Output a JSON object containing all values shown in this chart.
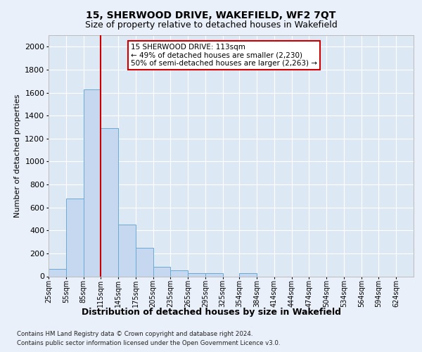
{
  "title1": "15, SHERWOOD DRIVE, WAKEFIELD, WF2 7QT",
  "title2": "Size of property relative to detached houses in Wakefield",
  "xlabel": "Distribution of detached houses by size in Wakefield",
  "ylabel": "Number of detached properties",
  "footnote1": "Contains HM Land Registry data © Crown copyright and database right 2024.",
  "footnote2": "Contains public sector information licensed under the Open Government Licence v3.0.",
  "annotation_line1": "15 SHERWOOD DRIVE: 113sqm",
  "annotation_line2": "← 49% of detached houses are smaller (2,230)",
  "annotation_line3": "50% of semi-detached houses are larger (2,263) →",
  "bin_starts": [
    25,
    55,
    85,
    115,
    145,
    175,
    205,
    235,
    265,
    295,
    325,
    354,
    384,
    414,
    444,
    474,
    504,
    534,
    564,
    594,
    624
  ],
  "bin_labels": [
    "25sqm",
    "55sqm",
    "85sqm",
    "115sqm",
    "145sqm",
    "175sqm",
    "205sqm",
    "235sqm",
    "265sqm",
    "295sqm",
    "325sqm",
    "354sqm",
    "384sqm",
    "414sqm",
    "444sqm",
    "474sqm",
    "504sqm",
    "534sqm",
    "564sqm",
    "594sqm",
    "624sqm"
  ],
  "values": [
    65,
    680,
    1630,
    1290,
    450,
    250,
    85,
    50,
    30,
    25,
    0,
    30,
    0,
    0,
    0,
    0,
    0,
    0,
    0,
    0,
    0
  ],
  "bar_color": "#c5d8f0",
  "bar_edge_color": "#6aaad4",
  "vline_x": 115,
  "vline_color": "#cc0000",
  "ylim": [
    0,
    2100
  ],
  "yticks": [
    0,
    200,
    400,
    600,
    800,
    1000,
    1200,
    1400,
    1600,
    1800,
    2000
  ],
  "bg_color": "#dde8f5",
  "fig_bg_color": "#eaf0fa",
  "grid_color": "#ffffff",
  "annotation_box_facecolor": "#ffffff",
  "annotation_box_edgecolor": "#cc0000",
  "title1_fontsize": 10,
  "title2_fontsize": 9,
  "ylabel_fontsize": 8,
  "xlabel_fontsize": 9,
  "ytick_fontsize": 8,
  "xtick_fontsize": 7,
  "annotation_fontsize": 7.5,
  "footnote_fontsize": 6.2
}
